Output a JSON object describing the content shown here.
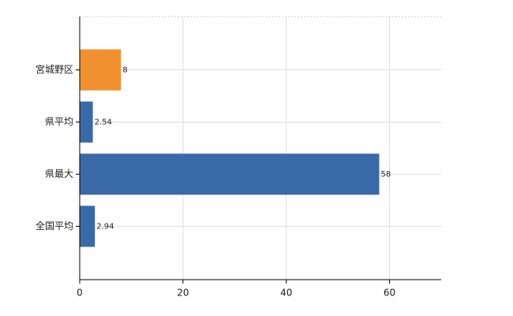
{
  "chart_data": {
    "type": "bar",
    "orientation": "horizontal",
    "categories": [
      "宮城野区",
      "県平均",
      "県最大",
      "全国平均"
    ],
    "values": [
      8,
      2.54,
      58,
      2.94
    ],
    "colors": [
      "#f0902f",
      "#3a69a8",
      "#3a69a8",
      "#3a69a8"
    ],
    "xlim": [
      0,
      70
    ],
    "xticks": [
      0,
      20,
      40,
      60
    ],
    "grid": true
  }
}
